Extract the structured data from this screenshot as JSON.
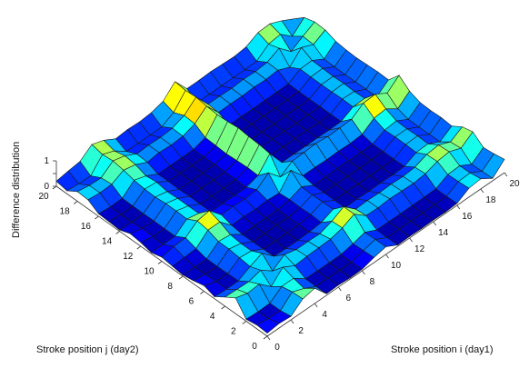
{
  "chart_data": {
    "type": "surface3d",
    "colormap": "jet",
    "x": [
      0,
      1,
      2,
      3,
      4,
      5,
      6,
      7,
      8,
      9,
      10,
      11,
      12,
      13,
      14,
      15,
      16,
      17,
      18,
      19,
      20
    ],
    "y": [
      0,
      1,
      2,
      3,
      4,
      5,
      6,
      7,
      8,
      9,
      10,
      11,
      12,
      13,
      14,
      15,
      16,
      17,
      18,
      19,
      20
    ],
    "z": [
      [
        0.12,
        0.15,
        0.08,
        0.62,
        0.36,
        0.08,
        0.22,
        0.12,
        0.05,
        0.1,
        0.16,
        0.05,
        0.15,
        0.2,
        0.05,
        0.08,
        0.1,
        0.35,
        0.38,
        0.12,
        0.2
      ],
      [
        0.18,
        0.08,
        0.05,
        0.48,
        0.34,
        0.05,
        0.06,
        0.05,
        0.04,
        0.12,
        0.26,
        0.04,
        0.06,
        0.08,
        0.04,
        0.06,
        0.05,
        0.3,
        0.3,
        0.07,
        0.28
      ],
      [
        0.14,
        0.07,
        0.06,
        0.52,
        0.32,
        0.06,
        0.05,
        0.04,
        0.04,
        0.15,
        0.28,
        0.05,
        0.05,
        0.06,
        0.05,
        0.05,
        0.06,
        0.32,
        0.28,
        0.06,
        0.34
      ],
      [
        0.5,
        0.48,
        0.4,
        0.1,
        0.45,
        0.3,
        0.35,
        0.4,
        0.4,
        0.55,
        0.62,
        0.4,
        0.42,
        0.42,
        0.38,
        0.4,
        0.45,
        0.55,
        0.62,
        0.58,
        0.68
      ],
      [
        0.6,
        0.3,
        0.4,
        0.55,
        0.1,
        0.5,
        0.3,
        0.3,
        0.35,
        0.55,
        0.7,
        0.3,
        0.3,
        0.3,
        0.28,
        0.35,
        0.3,
        0.45,
        0.5,
        0.4,
        0.52
      ],
      [
        0.06,
        0.05,
        0.06,
        0.28,
        0.42,
        0.06,
        0.05,
        0.04,
        0.04,
        0.1,
        0.22,
        0.05,
        0.05,
        0.06,
        0.04,
        0.06,
        0.05,
        0.22,
        0.25,
        0.06,
        0.26
      ],
      [
        0.08,
        0.06,
        0.05,
        0.32,
        0.3,
        0.04,
        0.04,
        0.04,
        0.05,
        0.12,
        0.22,
        0.04,
        0.05,
        0.05,
        0.04,
        0.05,
        0.05,
        0.28,
        0.28,
        0.05,
        0.3
      ],
      [
        0.05,
        0.04,
        0.05,
        0.34,
        0.3,
        0.04,
        0.05,
        0.05,
        0.04,
        0.08,
        0.2,
        0.04,
        0.04,
        0.05,
        0.04,
        0.04,
        0.05,
        0.25,
        0.26,
        0.06,
        0.28
      ],
      [
        0.06,
        0.05,
        0.05,
        0.36,
        0.28,
        0.05,
        0.05,
        0.04,
        0.04,
        0.12,
        0.24,
        0.04,
        0.05,
        0.06,
        0.05,
        0.05,
        0.05,
        0.28,
        0.3,
        0.06,
        0.32
      ],
      [
        0.2,
        0.18,
        0.15,
        0.48,
        0.45,
        0.1,
        0.12,
        0.1,
        0.12,
        0.08,
        0.58,
        0.18,
        0.2,
        0.18,
        0.15,
        0.18,
        0.2,
        0.45,
        0.48,
        0.3,
        0.45
      ],
      [
        0.3,
        0.3,
        0.28,
        0.7,
        0.7,
        0.3,
        0.3,
        0.28,
        0.3,
        0.65,
        0.1,
        0.72,
        0.78,
        0.8,
        0.85,
        0.8,
        0.78,
        0.82,
        0.88,
        0.85,
        0.9
      ],
      [
        0.05,
        0.04,
        0.05,
        0.32,
        0.28,
        0.04,
        0.04,
        0.04,
        0.04,
        0.12,
        0.4,
        0.05,
        0.05,
        0.06,
        0.04,
        0.05,
        0.05,
        0.25,
        0.28,
        0.06,
        0.3
      ],
      [
        0.06,
        0.05,
        0.05,
        0.3,
        0.3,
        0.05,
        0.05,
        0.05,
        0.04,
        0.12,
        0.42,
        0.05,
        0.04,
        0.05,
        0.04,
        0.05,
        0.05,
        0.26,
        0.28,
        0.05,
        0.3
      ],
      [
        0.05,
        0.05,
        0.04,
        0.34,
        0.28,
        0.04,
        0.04,
        0.05,
        0.05,
        0.1,
        0.45,
        0.04,
        0.05,
        0.05,
        0.04,
        0.05,
        0.04,
        0.25,
        0.26,
        0.06,
        0.32
      ],
      [
        0.06,
        0.04,
        0.05,
        0.32,
        0.3,
        0.05,
        0.05,
        0.04,
        0.04,
        0.12,
        0.4,
        0.05,
        0.05,
        0.04,
        0.05,
        0.04,
        0.05,
        0.28,
        0.3,
        0.06,
        0.3
      ],
      [
        0.05,
        0.05,
        0.05,
        0.3,
        0.28,
        0.04,
        0.04,
        0.04,
        0.05,
        0.1,
        0.42,
        0.04,
        0.04,
        0.05,
        0.04,
        0.05,
        0.05,
        0.26,
        0.28,
        0.05,
        0.28
      ],
      [
        0.08,
        0.06,
        0.06,
        0.36,
        0.32,
        0.06,
        0.05,
        0.05,
        0.05,
        0.14,
        0.44,
        0.05,
        0.05,
        0.06,
        0.05,
        0.05,
        0.06,
        0.3,
        0.32,
        0.07,
        0.34
      ],
      [
        0.35,
        0.32,
        0.3,
        0.52,
        0.5,
        0.28,
        0.3,
        0.3,
        0.28,
        0.45,
        0.75,
        0.3,
        0.32,
        0.3,
        0.3,
        0.3,
        0.32,
        0.1,
        0.55,
        0.42,
        0.58
      ],
      [
        0.4,
        0.34,
        0.32,
        0.58,
        0.55,
        0.3,
        0.32,
        0.3,
        0.32,
        0.5,
        0.78,
        0.32,
        0.3,
        0.32,
        0.3,
        0.32,
        0.34,
        0.55,
        0.1,
        0.48,
        0.6
      ],
      [
        0.1,
        0.08,
        0.06,
        0.4,
        0.35,
        0.06,
        0.06,
        0.05,
        0.06,
        0.18,
        0.5,
        0.06,
        0.06,
        0.06,
        0.05,
        0.06,
        0.07,
        0.35,
        0.38,
        0.08,
        0.4
      ],
      [
        0.52,
        0.45,
        0.4,
        0.72,
        0.62,
        0.36,
        0.4,
        0.38,
        0.4,
        0.55,
        0.88,
        0.4,
        0.42,
        0.4,
        0.38,
        0.4,
        0.45,
        0.6,
        0.62,
        0.5,
        0.15
      ]
    ],
    "xlabel": "Stroke position i (day1)",
    "ylabel": "Stroke position j (day2)",
    "zlabel": "Difference distribution",
    "xticks": [
      0,
      2,
      4,
      6,
      8,
      10,
      12,
      14,
      16,
      18,
      20
    ],
    "yticks": [
      0,
      2,
      4,
      6,
      8,
      10,
      12,
      14,
      16,
      18,
      20
    ],
    "zticks": [
      0,
      0.5,
      1
    ],
    "ztick_labels": [
      "0",
      "",
      "1"
    ],
    "xlim": [
      0,
      20
    ],
    "ylim": [
      0,
      20
    ],
    "zlim": [
      0,
      1
    ],
    "grid": false,
    "colors": {
      "edge": "#1a1a1a",
      "axis": "#333333",
      "background": "#ffffff"
    }
  }
}
